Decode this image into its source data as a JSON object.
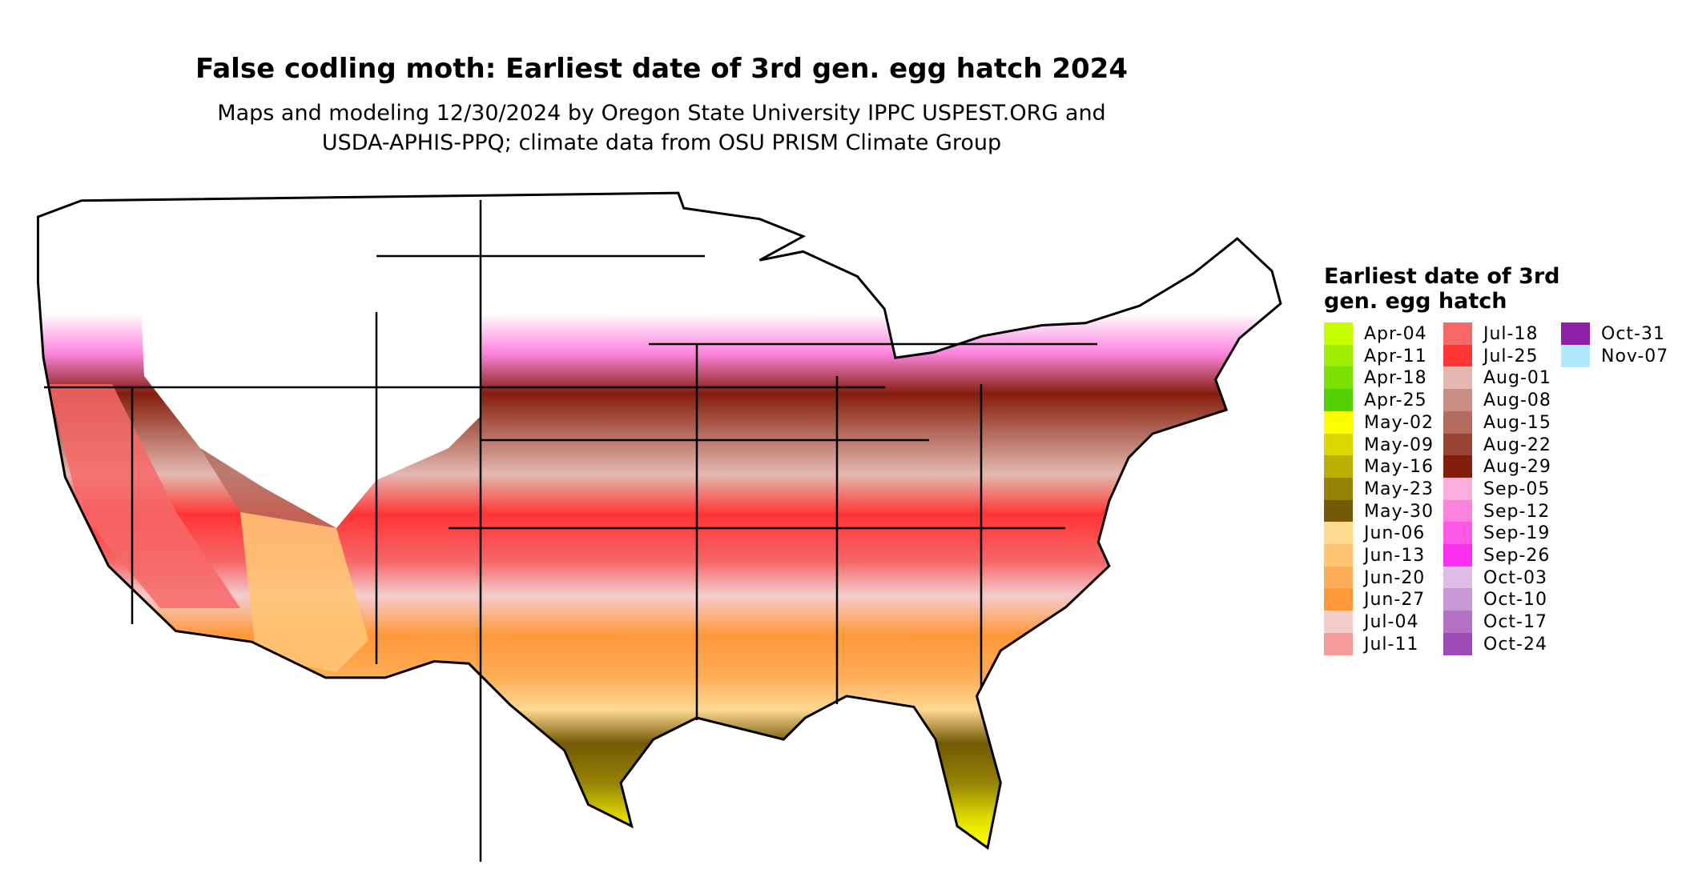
{
  "title": "False codling moth: Earliest date of 3rd gen. egg hatch 2024",
  "subtitle_line1": "Maps and modeling 12/30/2024 by Oregon State University IPPC USPEST.ORG and",
  "subtitle_line2": "USDA-APHIS-PPQ; climate data from OSU PRISM Climate Group",
  "legend": {
    "title": "Earliest date of 3rd gen. egg hatch",
    "items": [
      {
        "label": "Apr-04",
        "color": "#C8FF00"
      },
      {
        "label": "Apr-11",
        "color": "#A2EE00"
      },
      {
        "label": "Apr-18",
        "color": "#7CE000"
      },
      {
        "label": "Apr-25",
        "color": "#52D000"
      },
      {
        "label": "May-02",
        "color": "#FFFF00"
      },
      {
        "label": "May-09",
        "color": "#DED800"
      },
      {
        "label": "May-16",
        "color": "#BBAE00"
      },
      {
        "label": "May-23",
        "color": "#968306"
      },
      {
        "label": "May-30",
        "color": "#745A06"
      },
      {
        "label": "Jun-06",
        "color": "#FFD891"
      },
      {
        "label": "Jun-13",
        "color": "#FFC474"
      },
      {
        "label": "Jun-20",
        "color": "#FFAC58"
      },
      {
        "label": "Jun-27",
        "color": "#FF9838"
      },
      {
        "label": "Jul-04",
        "color": "#F4CCCC"
      },
      {
        "label": "Jul-11",
        "color": "#F49C9C"
      },
      {
        "label": "Jul-18",
        "color": "#F66868"
      },
      {
        "label": "Jul-25",
        "color": "#FF3434"
      },
      {
        "label": "Aug-01",
        "color": "#E4B8B0"
      },
      {
        "label": "Aug-08",
        "color": "#C88E84"
      },
      {
        "label": "Aug-15",
        "color": "#B46C5E"
      },
      {
        "label": "Aug-22",
        "color": "#984434"
      },
      {
        "label": "Aug-29",
        "color": "#841E0C"
      },
      {
        "label": "Sep-05",
        "color": "#FCAEDC"
      },
      {
        "label": "Sep-12",
        "color": "#FC84DE"
      },
      {
        "label": "Sep-19",
        "color": "#FC5AE6"
      },
      {
        "label": "Sep-26",
        "color": "#FC30F0"
      },
      {
        "label": "Oct-03",
        "color": "#DEBEE6"
      },
      {
        "label": "Oct-10",
        "color": "#C898D4"
      },
      {
        "label": "Oct-17",
        "color": "#B470C4"
      },
      {
        "label": "Oct-24",
        "color": "#9E4AB6"
      },
      {
        "label": "Oct-31",
        "color": "#8C22AA"
      },
      {
        "label": "Nov-07",
        "color": "#B0EAFC"
      }
    ]
  }
}
